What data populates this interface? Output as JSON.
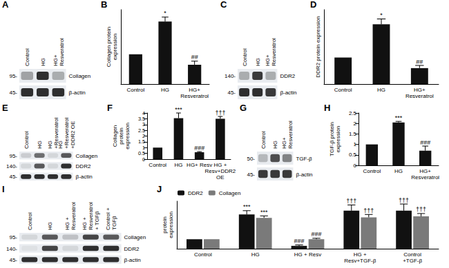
{
  "blots": [
    {
      "panel": "A",
      "lanes": [
        "Control",
        "HG",
        "HG+ Resveratrol"
      ],
      "rows": [
        {
          "protein": "Collagen",
          "kda": "95-",
          "bands": [
            0.35,
            0.9,
            0.3
          ]
        },
        {
          "protein": "β-actin",
          "kda": "45-",
          "bands": [
            0.9,
            0.9,
            0.9
          ]
        }
      ]
    },
    {
      "panel": "C",
      "lanes": [
        "Control",
        "HG",
        "HG+ Resveratrol"
      ],
      "rows": [
        {
          "protein": "DDR2",
          "kda": "140-",
          "bands": [
            0.3,
            0.85,
            0.3
          ]
        },
        {
          "protein": "β-actin",
          "kda": "45-",
          "bands": [
            0.9,
            0.9,
            0.85
          ]
        }
      ]
    },
    {
      "panel": "E",
      "lanes": [
        "Control",
        "HG",
        "HG +Resveratrol",
        "HG +Resveratrol +DDR2 OE"
      ],
      "rows": [
        {
          "protein": "Collagen",
          "kda": "95-",
          "bands": [
            0.15,
            0.6,
            0.1,
            0.7
          ]
        },
        {
          "protein": "DDR2",
          "kda": "140-",
          "bands": [
            0.1,
            0.7,
            0.1,
            0.9
          ]
        },
        {
          "protein": "β-actin",
          "kda": "45-",
          "bands": [
            0.9,
            0.9,
            0.9,
            0.9
          ]
        }
      ]
    },
    {
      "panel": "G",
      "lanes": [
        "Control",
        "HG",
        "HG+ Resveratrol"
      ],
      "rows": [
        {
          "protein": "TGF-β",
          "kda": "50-",
          "bands": [
            0.25,
            0.75,
            0.5
          ]
        },
        {
          "protein": "β-actin",
          "kda": "45-",
          "bands": [
            0.85,
            0.85,
            0.85
          ]
        }
      ]
    },
    {
      "panel": "I",
      "lanes": [
        "Control",
        "HG",
        "HG + Resveratrol",
        "HG + Resveratrol + TGFβ",
        "Control + TGFβ"
      ],
      "rows": [
        {
          "protein": "Collagen",
          "kda": "95-",
          "bands": [
            0.1,
            0.7,
            0.2,
            0.8,
            0.7
          ]
        },
        {
          "protein": "DDR2",
          "kda": "140-",
          "bands": [
            0.05,
            0.8,
            0.1,
            0.9,
            0.9
          ]
        },
        {
          "protein": "β-actin",
          "kda": "45-",
          "bands": [
            0.9,
            0.9,
            0.9,
            0.9,
            0.9
          ]
        }
      ]
    }
  ],
  "chart_data": [
    {
      "panel": "B",
      "type": "bar",
      "ylabel": "Collagen protein expression",
      "categories": [
        "Control",
        "HG",
        "HG+ Resveratrol"
      ],
      "values": [
        1,
        2.1,
        0.65
      ],
      "errors": [
        null,
        0.15,
        0.12
      ],
      "sig_labels": [
        null,
        "*",
        "##"
      ],
      "color": "#111111",
      "ylim": [
        0,
        2.5
      ],
      "tick_labels": "x",
      "grid": false
    },
    {
      "panel": "D",
      "type": "bar",
      "ylabel": "DDR2 protein expression",
      "categories": [
        "Control",
        "HG",
        "HG+ Resveratrol"
      ],
      "values": [
        1,
        2.25,
        0.6
      ],
      "errors": [
        null,
        0.2,
        0.1
      ],
      "sig_labels": [
        null,
        "*",
        "##"
      ],
      "color": "#111111",
      "ylim": [
        0,
        2.8
      ],
      "tick_labels": "x",
      "grid": false
    },
    {
      "panel": "F",
      "type": "bar",
      "ylabel": "Collagen protein expression",
      "categories": [
        "Control",
        "HG",
        "HG+ Resv",
        "HG + Resv+DDR2 OE"
      ],
      "values": [
        1,
        3.55,
        0.6,
        3.5
      ],
      "errors": [
        null,
        0.45,
        0.05,
        0.2
      ],
      "sig_labels": [
        null,
        "***",
        "###",
        "†††"
      ],
      "color": "#111111",
      "ylim": [
        0,
        4
      ],
      "yticks": [
        0,
        0.5,
        1,
        1.5,
        2,
        2.5,
        3,
        3.5,
        4
      ],
      "grid": false
    },
    {
      "panel": "H",
      "type": "bar",
      "ylabel": "TGF-β protein expression",
      "categories": [
        "Control",
        "HG",
        "HG+ Resveratrol"
      ],
      "values": [
        1,
        2.05,
        0.7
      ],
      "errors": [
        null,
        0.05,
        0.22
      ],
      "sig_labels": [
        null,
        "***",
        "###"
      ],
      "color": "#111111",
      "ylim": [
        0,
        2.5
      ],
      "yticks": [
        0,
        0.5,
        1,
        1.5,
        2,
        2.5
      ],
      "grid": false
    },
    {
      "panel": "J",
      "type": "bar",
      "ylabel": "protein expression",
      "categories": [
        "Control",
        "HG",
        "HG + Resv",
        "HG + Resv+TGF-β",
        "Control +TGF-β"
      ],
      "series": [
        {
          "name": "DDR2",
          "color": "#111111",
          "values": [
            1,
            3.6,
            0.3,
            4.0,
            4.0
          ],
          "errors": [
            null,
            0.4,
            0.1,
            0.6,
            0.7
          ],
          "sig_labels": [
            null,
            "***",
            "###",
            "†††",
            "†††"
          ]
        },
        {
          "name": "Collagen",
          "color": "#7a7a7a",
          "values": [
            1,
            3.25,
            1.0,
            3.3,
            3.4
          ],
          "errors": [
            null,
            0.2,
            0.1,
            0.3,
            0.3
          ],
          "sig_labels": [
            null,
            "***",
            "###",
            "†††",
            "†††"
          ]
        }
      ],
      "ylim": [
        0,
        5
      ],
      "tick_labels": "x",
      "legend": "top-left",
      "grid": false
    }
  ]
}
